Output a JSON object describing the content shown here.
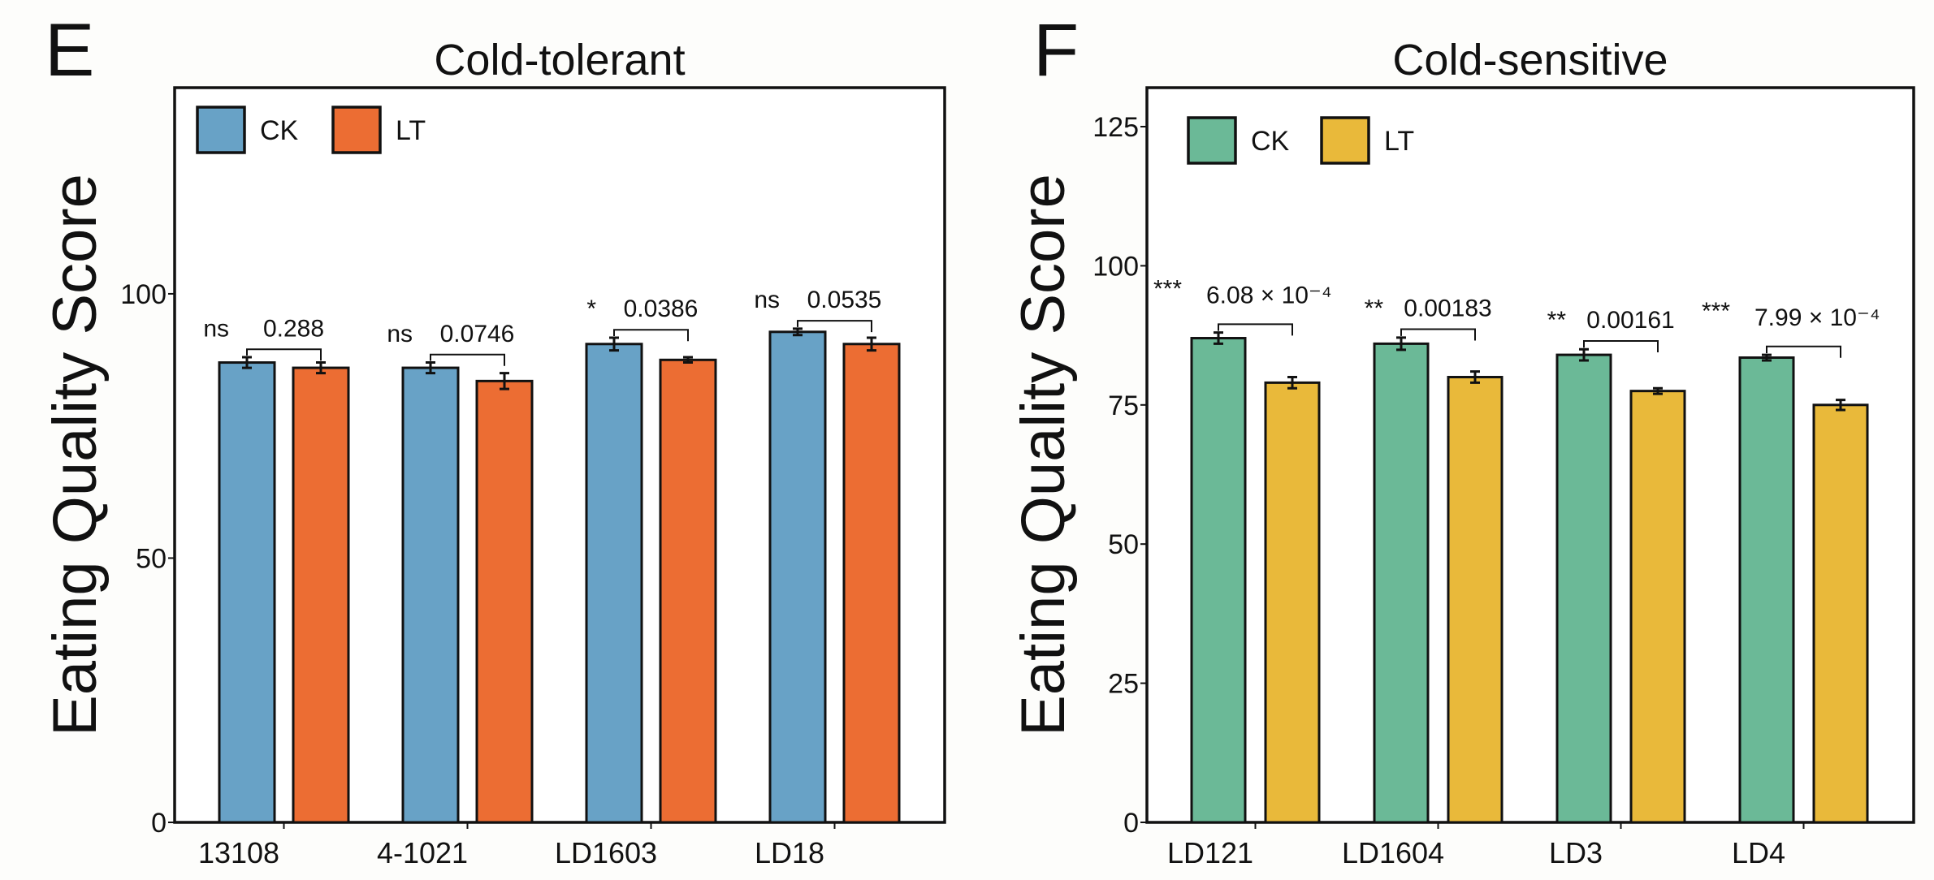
{
  "chart_data": [
    {
      "type": "bar",
      "panel_label": "E",
      "title": "Cold-tolerant",
      "xlabel": "",
      "ylabel": "Eating Quality Score",
      "ylim": [
        0,
        139
      ],
      "yticks": [
        0,
        50,
        100
      ],
      "grid": false,
      "legend_placement": "top-left",
      "categories": [
        "13108",
        "4-1021",
        "LD1603",
        "LD18"
      ],
      "series": [
        {
          "name": "CK",
          "color": "#68a2c6",
          "values": [
            87.0,
            86.0,
            90.5,
            92.8
          ],
          "errors": [
            1.0,
            1.0,
            1.2,
            0.6
          ]
        },
        {
          "name": "LT",
          "color": "#ec6d33",
          "values": [
            86.0,
            83.5,
            87.5,
            90.5
          ],
          "errors": [
            1.0,
            1.5,
            0.5,
            1.2
          ]
        }
      ],
      "annotations": [
        {
          "sig": "ns",
          "p": "0.288"
        },
        {
          "sig": "ns",
          "p": "0.0746"
        },
        {
          "sig": "*",
          "p": "0.0386"
        },
        {
          "sig": "ns",
          "p": "0.0535"
        }
      ]
    },
    {
      "type": "bar",
      "panel_label": "F",
      "title": "Cold-sensitive",
      "xlabel": "",
      "ylabel": "Eating Quality Score",
      "ylim": [
        0,
        132
      ],
      "yticks": [
        0,
        25,
        50,
        75,
        100,
        125
      ],
      "grid": false,
      "legend_placement": "top-left",
      "categories": [
        "LD121",
        "LD1604",
        "LD3",
        "LD4"
      ],
      "series": [
        {
          "name": "CK",
          "color": "#6bb997",
          "values": [
            87.0,
            86.0,
            84.0,
            83.5
          ],
          "errors": [
            1.0,
            1.1,
            1.0,
            0.5
          ]
        },
        {
          "name": "LT",
          "color": "#e9b93a",
          "values": [
            79.0,
            80.0,
            77.5,
            75.0
          ],
          "errors": [
            1.0,
            1.0,
            0.5,
            0.9
          ]
        }
      ],
      "annotations": [
        {
          "sig": "***",
          "p": "6.08 × 10⁻⁴"
        },
        {
          "sig": "**",
          "p": "0.00183"
        },
        {
          "sig": "**",
          "p": "0.00161"
        },
        {
          "sig": "***",
          "p": "7.99 × 10⁻⁴"
        }
      ]
    }
  ]
}
